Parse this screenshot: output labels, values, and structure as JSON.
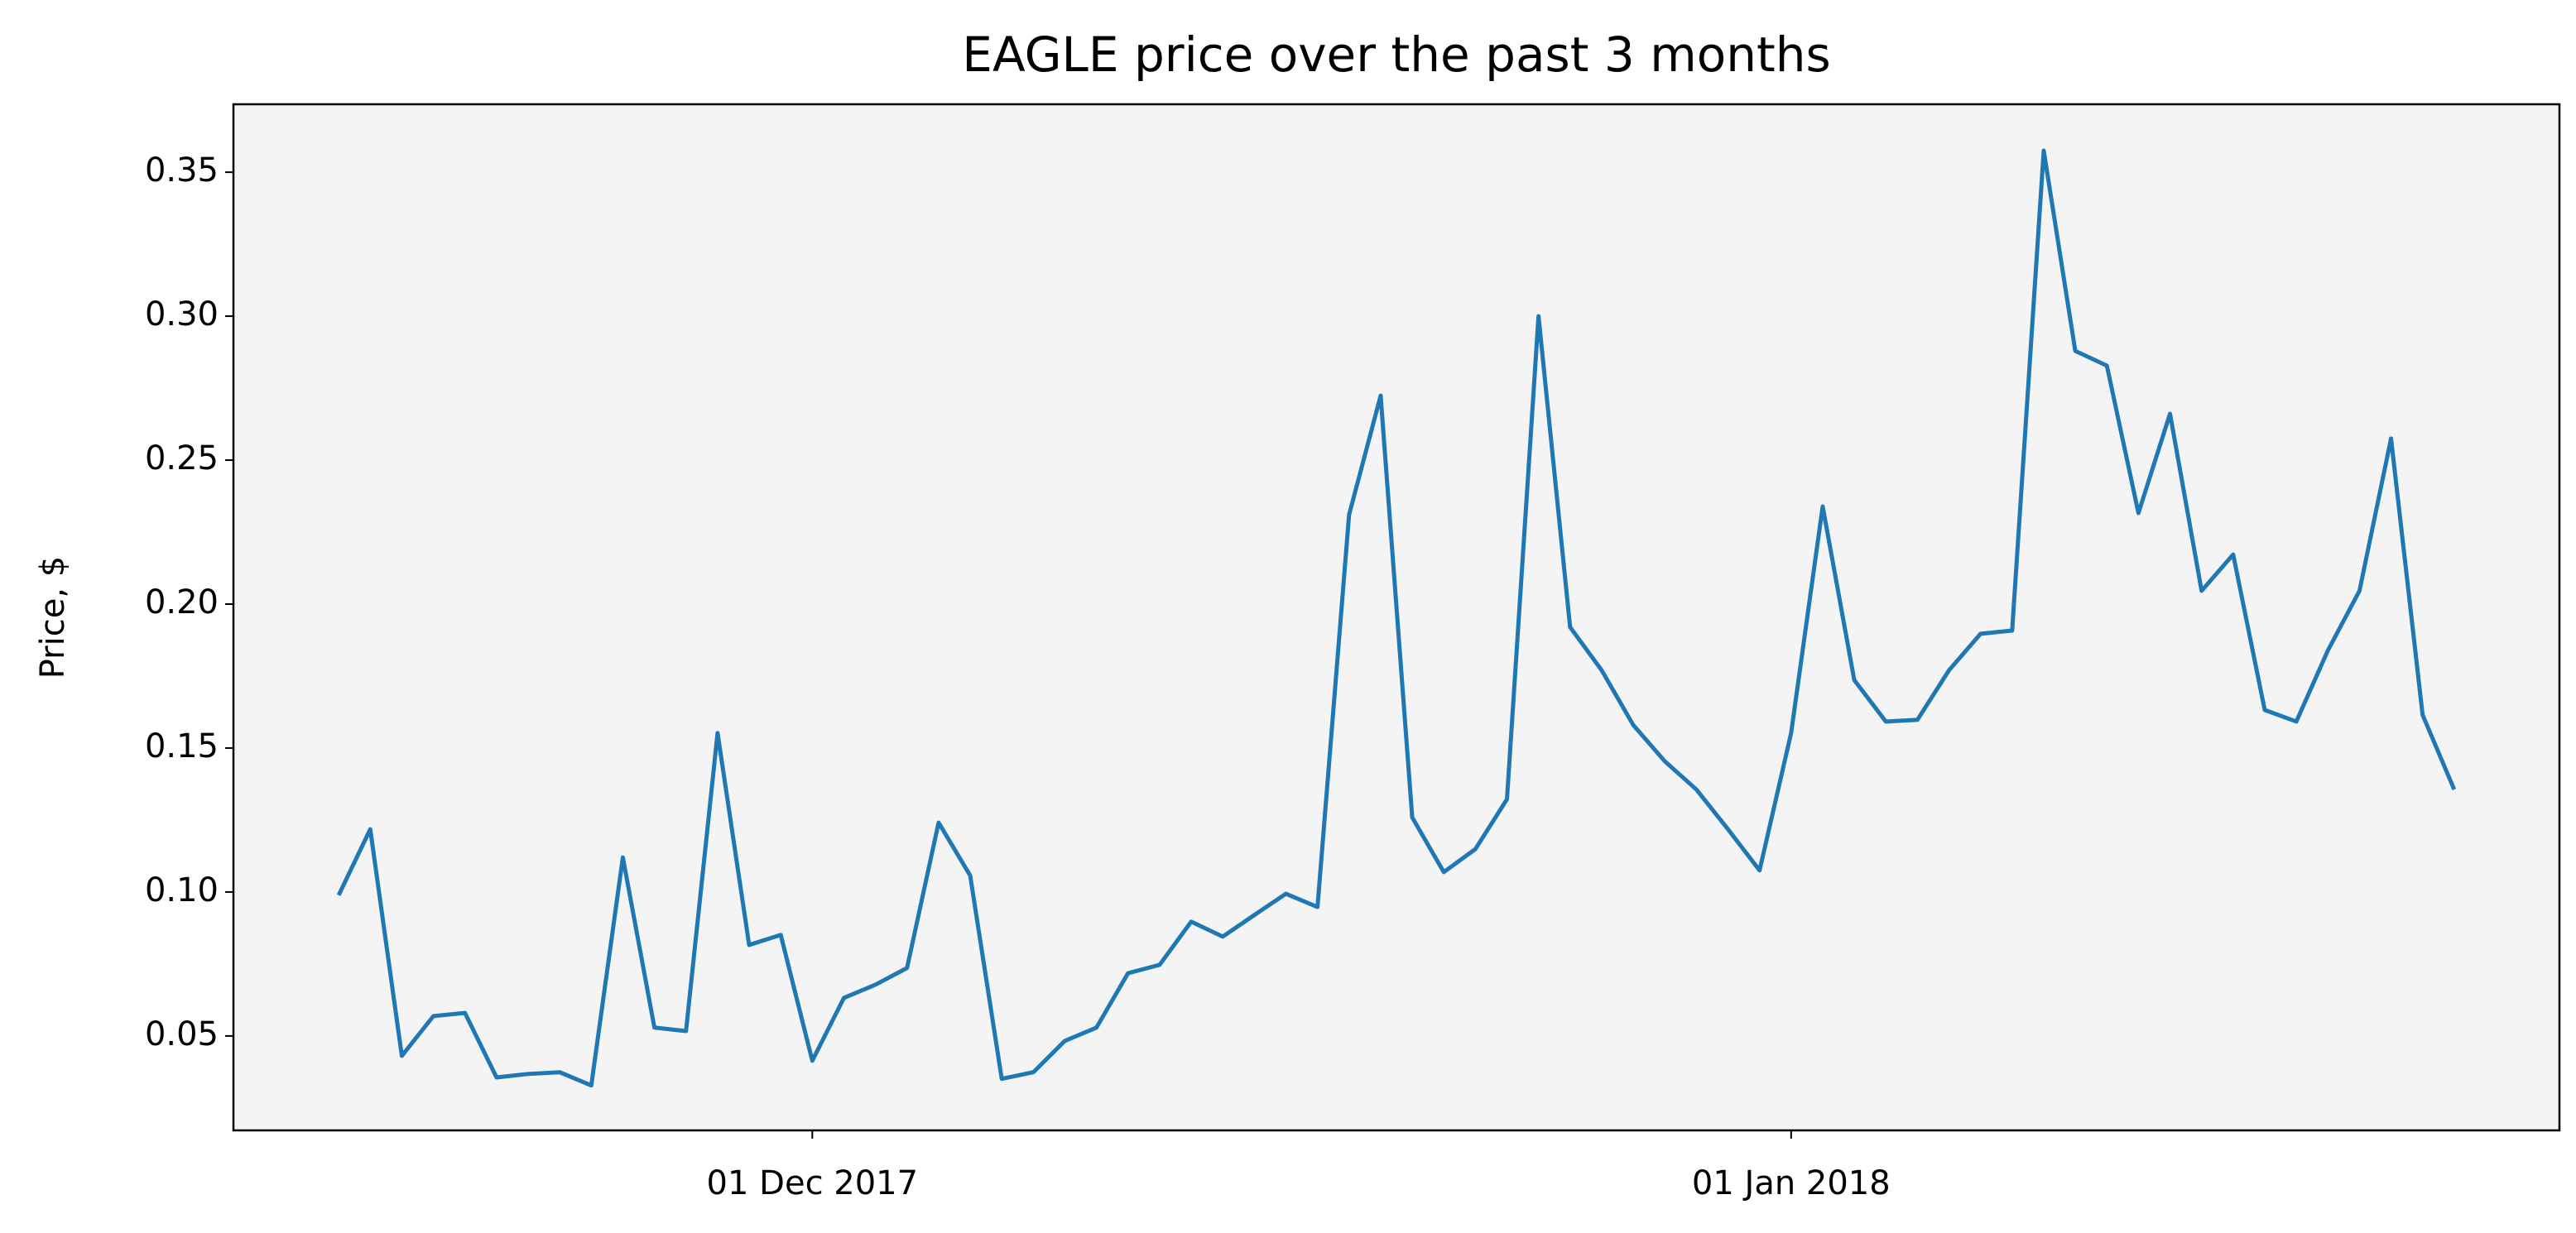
{
  "chart_data": {
    "type": "line",
    "title": "EAGLE price over the past 3 months",
    "y_label": "Price, $",
    "x": [
      "2017-11-16",
      "2017-11-17",
      "2017-11-18",
      "2017-11-19",
      "2017-11-20",
      "2017-11-21",
      "2017-11-22",
      "2017-11-23",
      "2017-11-24",
      "2017-11-25",
      "2017-11-26",
      "2017-11-27",
      "2017-11-28",
      "2017-11-29",
      "2017-11-30",
      "2017-12-01",
      "2017-12-02",
      "2017-12-03",
      "2017-12-04",
      "2017-12-05",
      "2017-12-06",
      "2017-12-07",
      "2017-12-08",
      "2017-12-09",
      "2017-12-10",
      "2017-12-11",
      "2017-12-12",
      "2017-12-13",
      "2017-12-14",
      "2017-12-15",
      "2017-12-16",
      "2017-12-17",
      "2017-12-18",
      "2017-12-19",
      "2017-12-20",
      "2017-12-21",
      "2017-12-22",
      "2017-12-23",
      "2017-12-24",
      "2017-12-25",
      "2017-12-26",
      "2017-12-27",
      "2017-12-28",
      "2017-12-29",
      "2017-12-30",
      "2017-12-31",
      "2018-01-01",
      "2018-01-02",
      "2018-01-03",
      "2018-01-04",
      "2018-01-05",
      "2018-01-06",
      "2018-01-07",
      "2018-01-08",
      "2018-01-09",
      "2018-01-10",
      "2018-01-11",
      "2018-01-12",
      "2018-01-13",
      "2018-01-14",
      "2018-01-15",
      "2018-01-16",
      "2018-01-17",
      "2018-01-18",
      "2018-01-19",
      "2018-01-20",
      "2018-01-21",
      "2018-01-22"
    ],
    "values": [
      0.0989,
      0.1218,
      0.0431,
      0.0569,
      0.058,
      0.0356,
      0.0368,
      0.0374,
      0.0328,
      0.112,
      0.0529,
      0.0517,
      0.1552,
      0.0816,
      0.0851,
      0.0414,
      0.0632,
      0.0678,
      0.0736,
      0.1241,
      0.1057,
      0.0351,
      0.0374,
      0.0483,
      0.0529,
      0.0718,
      0.0747,
      0.0897,
      0.0845,
      0.092,
      0.0994,
      0.0948,
      0.231,
      0.2724,
      0.1259,
      0.1069,
      0.1149,
      0.1322,
      0.3,
      0.192,
      0.177,
      0.158,
      0.1454,
      0.1356,
      0.1218,
      0.1075,
      0.1552,
      0.2339,
      0.1736,
      0.1592,
      0.1598,
      0.177,
      0.1897,
      0.1908,
      0.3575,
      0.2879,
      0.2828,
      0.2316,
      0.2661,
      0.2046,
      0.2172,
      0.1632,
      0.1592,
      0.1839,
      0.2046,
      0.2575,
      0.1615,
      0.1356
    ],
    "color": "#1f77b4",
    "background": "#f4f4f4",
    "xlim": [
      "2017-11-12T16:00:00Z",
      "2018-01-25T08:00:00Z"
    ],
    "xticks": [
      {
        "value": "2017-12-01",
        "label": "01 Dec 2017"
      },
      {
        "value": "2018-01-01",
        "label": "01 Jan 2018"
      }
    ],
    "ylim": [
      0.0172,
      0.3736
    ],
    "yticks": [
      0.05,
      {
        "value": 0.1,
        "label": "0.10"
      },
      0.15,
      {
        "value": 0.2,
        "label": "0.20"
      },
      0.25,
      {
        "value": 0.3,
        "label": "0.30"
      },
      0.35
    ]
  }
}
